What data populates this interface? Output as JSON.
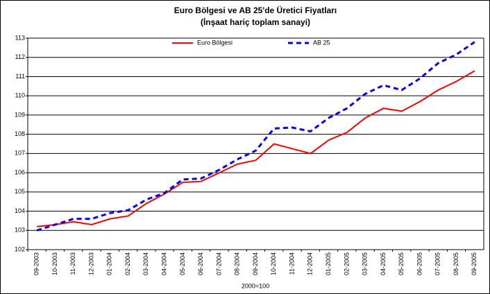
{
  "chart_data": {
    "type": "line",
    "title": "Euro Bölgesi ve AB 25'de Üretici Fiyatları",
    "subtitle": "(İnşaat hariç toplam sanayi)",
    "x_label": "2000=100",
    "categories": [
      "09-2003",
      "10-2003",
      "11-2003",
      "12-2003",
      "01-2004",
      "02-2004",
      "03-2004",
      "04-2004",
      "05-2004",
      "06-2004",
      "07-2004",
      "08-2004",
      "09-2004",
      "10-2004",
      "11-2004",
      "12-2004",
      "01-2005",
      "02-2005",
      "03-2005",
      "04-2005",
      "05-2005",
      "06-2005",
      "07-2005",
      "08-2005",
      "09-2005"
    ],
    "series": [
      {
        "name": "Euro Bölgesi",
        "color": "#ff0000",
        "dashed": false,
        "values": [
          103.2,
          103.3,
          103.45,
          103.3,
          103.6,
          103.75,
          104.4,
          104.9,
          105.5,
          105.55,
          106.0,
          106.45,
          106.65,
          107.5,
          107.25,
          107.0,
          107.7,
          108.1,
          108.85,
          109.35,
          109.2,
          109.7,
          110.3,
          110.75,
          111.3
        ]
      },
      {
        "name": "AB 25",
        "color": "#0000ff",
        "dashed": true,
        "values": [
          103.0,
          103.3,
          103.6,
          103.6,
          103.9,
          104.05,
          104.6,
          104.95,
          105.65,
          105.7,
          106.15,
          106.7,
          107.15,
          108.3,
          108.35,
          108.15,
          108.85,
          109.35,
          110.1,
          110.55,
          110.3,
          110.9,
          111.7,
          112.15,
          112.8
        ]
      }
    ],
    "ylim": [
      102,
      113
    ],
    "yticks": [
      102,
      103,
      104,
      105,
      106,
      107,
      108,
      109,
      110,
      111,
      112,
      113
    ],
    "grid": true,
    "legend": "top"
  }
}
